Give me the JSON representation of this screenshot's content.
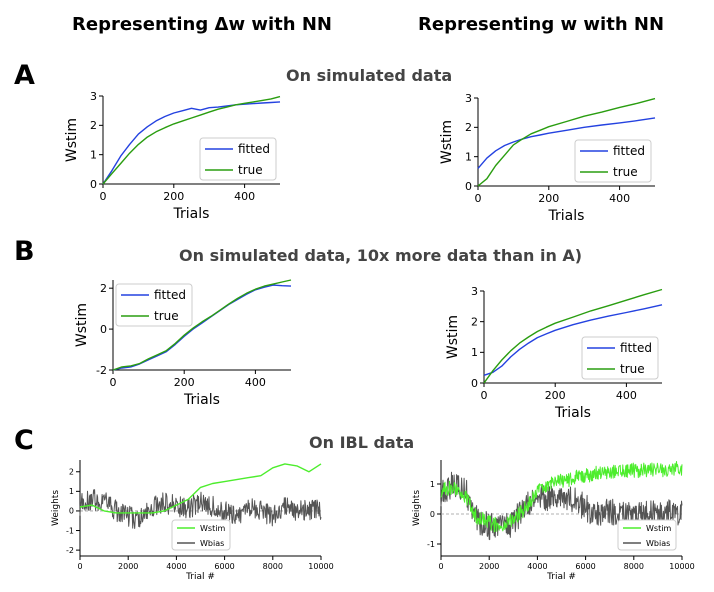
{
  "headers": {
    "left": "Representing Δw with NN",
    "right": "Representing w with NN"
  },
  "panels": {
    "A": {
      "letter": "A",
      "title": "On simulated data"
    },
    "B": {
      "letter": "B",
      "title": "On simulated data, 10x more data than in A)"
    },
    "C": {
      "letter": "C",
      "title": "On IBL data"
    }
  },
  "colors": {
    "fitted": "#2442e0",
    "true": "#2a9d10",
    "wstim": "#4ded2d",
    "wbias": "#555555",
    "axis": "#000000",
    "zero_line": "#999999"
  },
  "chart_data": [
    {
      "id": "A-left",
      "type": "line",
      "xlabel": "Trials",
      "ylabel": "Wstim",
      "xlim": [
        0,
        500
      ],
      "ylim": [
        0,
        3
      ],
      "xticks": [
        0,
        200,
        400
      ],
      "yticks": [
        0,
        1,
        2,
        3
      ],
      "legend": {
        "placement": "bottom-right",
        "entries": [
          "fitted",
          "true"
        ]
      },
      "series": [
        {
          "name": "fitted",
          "color": "#2442e0",
          "x": [
            0,
            25,
            50,
            75,
            100,
            125,
            150,
            175,
            200,
            225,
            250,
            275,
            300,
            325,
            350,
            375,
            400,
            425,
            450,
            475,
            500
          ],
          "y": [
            0.0,
            0.45,
            0.95,
            1.35,
            1.7,
            1.95,
            2.15,
            2.3,
            2.42,
            2.5,
            2.58,
            2.52,
            2.6,
            2.62,
            2.66,
            2.7,
            2.72,
            2.74,
            2.76,
            2.78,
            2.8
          ]
        },
        {
          "name": "true",
          "color": "#2a9d10",
          "x": [
            0,
            25,
            50,
            75,
            100,
            125,
            150,
            175,
            200,
            225,
            250,
            275,
            300,
            325,
            350,
            375,
            400,
            425,
            450,
            475,
            500
          ],
          "y": [
            0.0,
            0.35,
            0.7,
            1.05,
            1.35,
            1.6,
            1.78,
            1.92,
            2.05,
            2.15,
            2.25,
            2.35,
            2.45,
            2.55,
            2.62,
            2.7,
            2.75,
            2.8,
            2.85,
            2.9,
            2.98
          ]
        }
      ]
    },
    {
      "id": "A-right",
      "type": "line",
      "xlabel": "Trials",
      "ylabel": "Wstim",
      "xlim": [
        0,
        500
      ],
      "ylim": [
        0,
        3
      ],
      "xticks": [
        0,
        200,
        400
      ],
      "yticks": [
        0,
        1,
        2,
        3
      ],
      "legend": {
        "placement": "bottom-right",
        "entries": [
          "fitted",
          "true"
        ]
      },
      "series": [
        {
          "name": "fitted",
          "color": "#2442e0",
          "x": [
            0,
            25,
            50,
            75,
            100,
            125,
            150,
            175,
            200,
            250,
            300,
            350,
            400,
            450,
            500
          ],
          "y": [
            0.6,
            0.95,
            1.2,
            1.38,
            1.5,
            1.6,
            1.68,
            1.74,
            1.8,
            1.9,
            2.0,
            2.08,
            2.15,
            2.23,
            2.32
          ]
        },
        {
          "name": "true",
          "color": "#2a9d10",
          "x": [
            0,
            25,
            50,
            75,
            100,
            125,
            150,
            175,
            200,
            250,
            300,
            350,
            400,
            450,
            500
          ],
          "y": [
            0.0,
            0.25,
            0.7,
            1.05,
            1.4,
            1.6,
            1.78,
            1.9,
            2.02,
            2.2,
            2.38,
            2.52,
            2.68,
            2.82,
            2.98
          ]
        }
      ]
    },
    {
      "id": "B-left",
      "type": "line",
      "xlabel": "Trials",
      "ylabel": "Wstim",
      "xlim": [
        0,
        500
      ],
      "ylim": [
        -2,
        2.4
      ],
      "xticks": [
        0,
        200,
        400
      ],
      "yticks": [
        -2,
        0,
        2
      ],
      "legend": {
        "placement": "top-left",
        "entries": [
          "fitted",
          "true"
        ]
      },
      "series": [
        {
          "name": "fitted",
          "color": "#2442e0",
          "x": [
            0,
            25,
            50,
            75,
            100,
            125,
            150,
            175,
            200,
            225,
            250,
            275,
            300,
            325,
            350,
            375,
            400,
            425,
            450,
            475,
            500
          ],
          "y": [
            -2.0,
            -1.9,
            -1.85,
            -1.7,
            -1.5,
            -1.3,
            -1.1,
            -0.75,
            -0.35,
            0.0,
            0.3,
            0.6,
            0.9,
            1.2,
            1.45,
            1.7,
            1.92,
            2.05,
            2.15,
            2.12,
            2.1
          ]
        },
        {
          "name": "true",
          "color": "#2a9d10",
          "x": [
            0,
            25,
            50,
            75,
            100,
            125,
            150,
            175,
            200,
            225,
            250,
            275,
            300,
            325,
            350,
            375,
            400,
            425,
            450,
            475,
            500
          ],
          "y": [
            -2.0,
            -1.85,
            -1.8,
            -1.68,
            -1.45,
            -1.25,
            -1.05,
            -0.7,
            -0.3,
            0.05,
            0.35,
            0.62,
            0.92,
            1.22,
            1.5,
            1.75,
            1.95,
            2.1,
            2.2,
            2.3,
            2.4
          ]
        }
      ]
    },
    {
      "id": "B-right",
      "type": "line",
      "xlabel": "Trials",
      "ylabel": "Wstim",
      "xlim": [
        0,
        500
      ],
      "ylim": [
        0,
        3
      ],
      "xticks": [
        0,
        200,
        400
      ],
      "yticks": [
        0,
        1,
        2,
        3
      ],
      "legend": {
        "placement": "bottom-right",
        "entries": [
          "fitted",
          "true"
        ]
      },
      "series": [
        {
          "name": "fitted",
          "color": "#2442e0",
          "x": [
            0,
            25,
            50,
            75,
            100,
            125,
            150,
            175,
            200,
            250,
            300,
            350,
            400,
            450,
            500
          ],
          "y": [
            0.25,
            0.35,
            0.55,
            0.85,
            1.1,
            1.3,
            1.48,
            1.6,
            1.72,
            1.9,
            2.05,
            2.18,
            2.3,
            2.42,
            2.55
          ]
        },
        {
          "name": "true",
          "color": "#2a9d10",
          "x": [
            0,
            25,
            50,
            75,
            100,
            125,
            150,
            175,
            200,
            250,
            300,
            350,
            400,
            450,
            500
          ],
          "y": [
            0.0,
            0.4,
            0.75,
            1.05,
            1.3,
            1.5,
            1.68,
            1.82,
            1.95,
            2.15,
            2.35,
            2.52,
            2.7,
            2.88,
            3.05
          ]
        }
      ]
    },
    {
      "id": "C-left",
      "type": "line",
      "xlabel": "Trial #",
      "ylabel": "Weights",
      "xlim": [
        0,
        10000
      ],
      "ylim": [
        -2.3,
        2.6
      ],
      "xticks": [
        0,
        2000,
        4000,
        6000,
        8000,
        10000
      ],
      "yticks": [
        -2,
        -1,
        0,
        1,
        2
      ],
      "legend": {
        "placement": "bottom-center",
        "entries": [
          "Wstim",
          "Wbias"
        ]
      },
      "series": [
        {
          "name": "Wstim",
          "color": "#4ded2d",
          "x": [
            0,
            500,
            1000,
            1500,
            2000,
            2500,
            3000,
            3500,
            4000,
            4500,
            5000,
            5500,
            6000,
            6500,
            7000,
            7500,
            8000,
            8500,
            9000,
            9500,
            10000
          ],
          "y": [
            0.2,
            0.3,
            0.0,
            -0.1,
            -0.1,
            -0.1,
            -0.1,
            0.0,
            0.3,
            0.6,
            1.2,
            1.4,
            1.5,
            1.6,
            1.7,
            1.8,
            2.2,
            2.4,
            2.3,
            2.0,
            2.4
          ]
        },
        {
          "name": "Wbias",
          "color": "#555555",
          "noise": 0.55,
          "x": [
            0,
            500,
            1000,
            1500,
            2000,
            2500,
            3000,
            3500,
            4000,
            4500,
            5000,
            5500,
            6000,
            6500,
            7000,
            7500,
            8000,
            8500,
            9000,
            9500,
            10000
          ],
          "y": [
            0.3,
            0.6,
            0.5,
            0.0,
            -0.3,
            -0.4,
            0.2,
            0.4,
            0.3,
            0.1,
            0.5,
            0.2,
            0.0,
            -0.2,
            0.2,
            0.0,
            -0.3,
            0.2,
            0.0,
            0.1,
            0.0
          ]
        }
      ]
    },
    {
      "id": "C-right",
      "type": "line",
      "xlabel": "Trial #",
      "ylabel": "Weights",
      "xlim": [
        0,
        10000
      ],
      "ylim": [
        -1.4,
        1.8
      ],
      "xticks": [
        0,
        2000,
        4000,
        6000,
        8000,
        10000
      ],
      "yticks": [
        -1,
        0,
        1
      ],
      "legend": {
        "placement": "bottom-right",
        "entries": [
          "Wstim",
          "Wbias"
        ]
      },
      "series": [
        {
          "name": "Wstim",
          "color": "#4ded2d",
          "noise": 0.25,
          "x": [
            0,
            500,
            1000,
            1500,
            2000,
            2500,
            3000,
            3500,
            4000,
            4500,
            5000,
            5500,
            6000,
            6500,
            7000,
            7500,
            8000,
            8500,
            9000,
            9500,
            10000
          ],
          "y": [
            0.8,
            0.9,
            0.6,
            -0.1,
            -0.3,
            -0.4,
            -0.2,
            0.2,
            0.8,
            1.0,
            1.1,
            1.2,
            1.3,
            1.35,
            1.4,
            1.42,
            1.45,
            1.46,
            1.48,
            1.5,
            1.5
          ]
        },
        {
          "name": "Wbias",
          "color": "#555555",
          "noise": 0.45,
          "x": [
            0,
            500,
            1000,
            1500,
            2000,
            2500,
            3000,
            3500,
            4000,
            4500,
            5000,
            5500,
            6000,
            6500,
            7000,
            7500,
            8000,
            8500,
            9000,
            9500,
            10000
          ],
          "y": [
            0.7,
            1.0,
            0.8,
            -0.2,
            -0.4,
            -0.5,
            -0.3,
            0.3,
            0.6,
            0.5,
            0.4,
            0.5,
            0.2,
            0.0,
            0.1,
            0.0,
            -0.1,
            0.0,
            0.0,
            0.1,
            0.0
          ]
        }
      ]
    }
  ]
}
